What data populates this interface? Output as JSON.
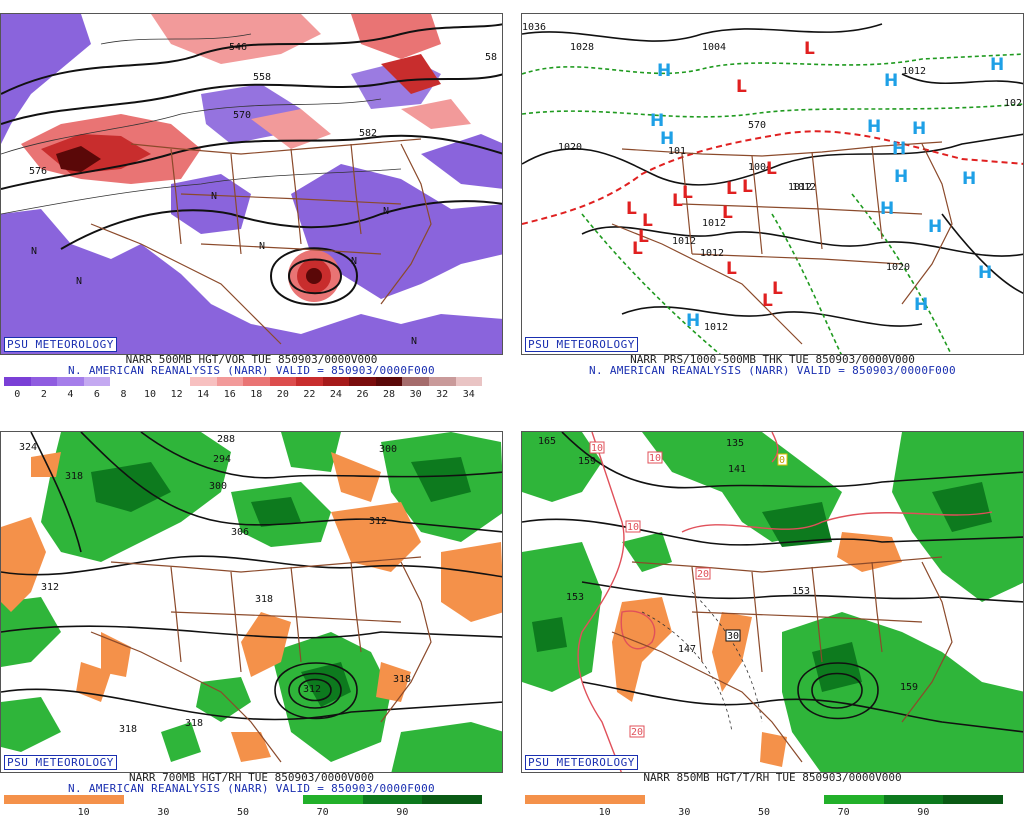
{
  "panels": [
    {
      "id": "vor500",
      "brand": "PSU METEOROLOGY",
      "line1": "NARR 500MB HGT/VOR TUE 850903/0000V000",
      "line2": "N. AMERICAN REANALYSIS (NARR) VALID = 850903/0000F000",
      "colorbar": [
        "#7a3fd6",
        "#8f5ce0",
        "#a57eea",
        "#c4a9f1",
        "#ffffff",
        "#ffffff",
        "#ffffff",
        "#f7c0c0",
        "#f29a9a",
        "#e97474",
        "#dc4d4d",
        "#c82d2d",
        "#a61a1a",
        "#7a0d0d",
        "#5a0808",
        "#a56c6c",
        "#c99a9a",
        "#e9c4c4"
      ],
      "ticks": [
        "0",
        "2",
        "4",
        "6",
        "8",
        "10",
        "12",
        "14",
        "16",
        "18",
        "20",
        "22",
        "24",
        "26",
        "28",
        "30",
        "32",
        "34"
      ],
      "contour_labels": [
        "546",
        "558",
        "570",
        "582",
        "576",
        "58"
      ]
    },
    {
      "id": "thk",
      "brand": "PSU METEOROLOGY",
      "line1": "NARR PRS/1000-500MB THK TUE 850903/0000V000",
      "line2": "N. AMERICAN REANALYSIS (NARR) VALID = 850903/0000F000",
      "isobar_labels": [
        "1036",
        "1028",
        "1020",
        "1004",
        "1012",
        "1012",
        "1012",
        "1012",
        "1020",
        "1012",
        "102",
        "1012",
        "570",
        "1004",
        "101",
        "1012"
      ]
    },
    {
      "id": "rh700",
      "brand": "PSU METEOROLOGY",
      "line1": "NARR 700MB HGT/RH TUE 850903/0000V000",
      "line2": "N. AMERICAN REANALYSIS (NARR) VALID = 850903/0000F000",
      "colorbar": [
        "#f4914a",
        "#f4914a",
        "#ffffff",
        "#ffffff",
        "#ffffff",
        "#22b02a",
        "#0d7a1e",
        "#0a5a15"
      ],
      "ticks": [
        "10",
        "30",
        "50",
        "70",
        "90"
      ],
      "contour_labels": [
        "324",
        "318",
        "288",
        "294",
        "300",
        "300",
        "312",
        "312",
        "306",
        "318",
        "318",
        "318",
        "318",
        "312"
      ]
    },
    {
      "id": "rh850",
      "brand": "PSU METEOROLOGY",
      "line1": "NARR 850MB HGT/T/RH TUE 850903/0000V000",
      "line2": "",
      "colorbar": [
        "#f4914a",
        "#f4914a",
        "#ffffff",
        "#ffffff",
        "#ffffff",
        "#22b02a",
        "#0d7a1e",
        "#0a5a15"
      ],
      "ticks": [
        "10",
        "30",
        "50",
        "70",
        "90"
      ],
      "contour_labels": [
        "165",
        "159",
        "135",
        "141",
        "153",
        "153",
        "147",
        "159",
        "10",
        "10",
        "10",
        "20",
        "30",
        "20",
        "0"
      ]
    }
  ],
  "symbols": {
    "high": "H",
    "low": "L",
    "n_mark": "N"
  },
  "colors": {
    "brand": "#1a2fb0",
    "border": "#8b4a2b",
    "high": "#1ea0e6",
    "low": "#e02020",
    "orange": "#f4914a",
    "green": "#22b02a"
  }
}
